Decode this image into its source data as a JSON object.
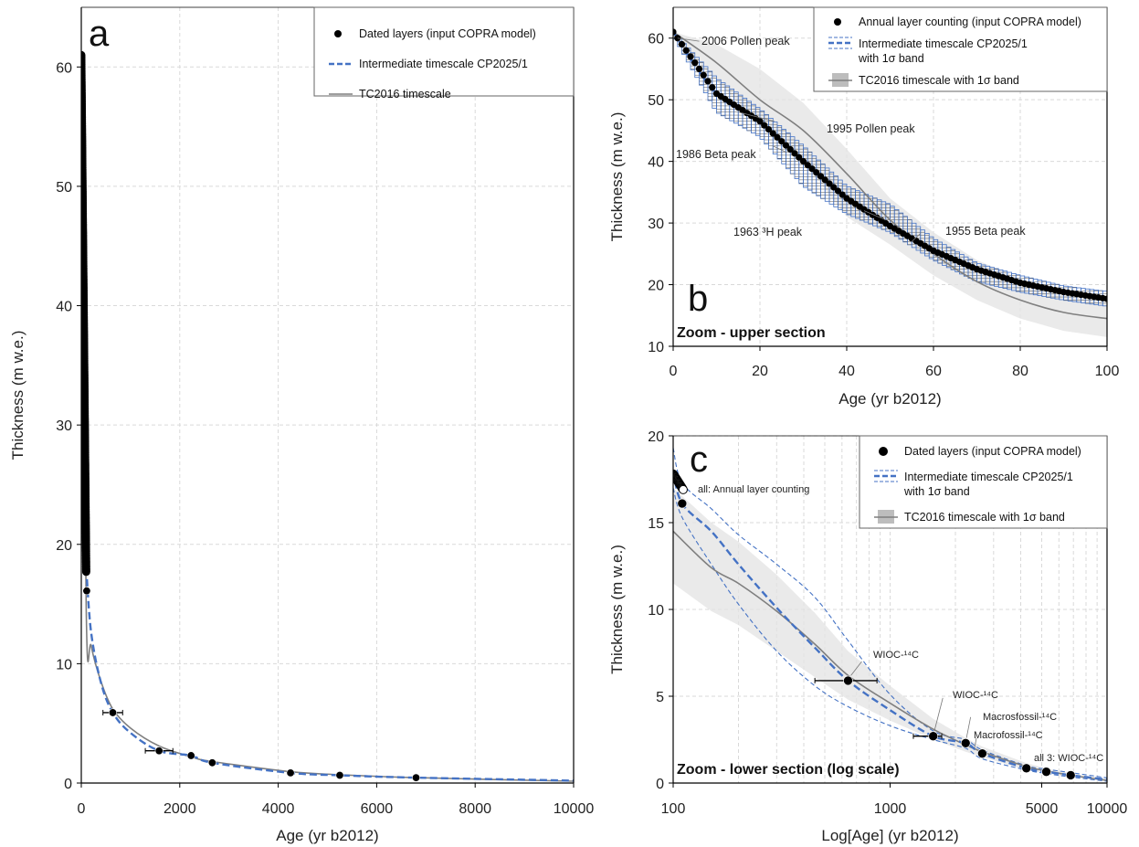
{
  "colors": {
    "dated": "#000000",
    "cp2025": "#4472c4",
    "tc2016": "#7f7f7f",
    "tc_band": "#e3e3e3"
  },
  "chart_data": [
    {
      "type": "scatter",
      "panel_letter": "a",
      "xlabel": "Age (yr b2012)",
      "ylabel": "Thickness (m w.e.)",
      "xlim": [
        0,
        10000
      ],
      "ylim": [
        0,
        65
      ],
      "xticks": [
        0,
        2000,
        4000,
        6000,
        8000,
        10000
      ],
      "yticks": [
        0,
        10,
        20,
        30,
        40,
        50,
        60
      ],
      "grid": true,
      "legend_position": "top-right",
      "legend": [
        {
          "label": "Dated layers (input COPRA model)",
          "kind": "marker"
        },
        {
          "label": "Intermediate timescale CP2025/1",
          "kind": "dash"
        },
        {
          "label": "TC2016 timescale",
          "kind": "solid"
        }
      ],
      "series": [
        {
          "name": "Dated layers (input COPRA model)",
          "role": "dated",
          "annual_layers": {
            "age_from": 0,
            "age_to": 100,
            "thickness_from": 61,
            "thickness_to": 17.7
          },
          "points": [
            {
              "x": 110,
              "y": 16.1
            },
            {
              "x": 640,
              "y": 5.9,
              "xerr": 200
            },
            {
              "x": 1580,
              "y": 2.7,
              "xerr": 280
            },
            {
              "x": 2230,
              "y": 2.3
            },
            {
              "x": 2660,
              "y": 1.7
            },
            {
              "x": 4250,
              "y": 0.85
            },
            {
              "x": 5250,
              "y": 0.65
            },
            {
              "x": 6800,
              "y": 0.45
            }
          ]
        },
        {
          "name": "Intermediate timescale CP2025/1",
          "role": "cp2025",
          "x": [
            100,
            200,
            400,
            640,
            1000,
            1580,
            2230,
            2660,
            4250,
            5250,
            6800,
            10000
          ],
          "y": [
            18.0,
            12.6,
            8.4,
            5.9,
            4.2,
            2.7,
            2.3,
            1.7,
            0.85,
            0.65,
            0.45,
            0.2
          ]
        },
        {
          "name": "TC2016 timescale",
          "role": "tc2016",
          "x": [
            0,
            100,
            200,
            400,
            640,
            1000,
            1580,
            2230,
            2660,
            4250,
            5250,
            6800,
            10000
          ],
          "y": [
            61,
            14.5,
            11.5,
            8.5,
            6.2,
            4.6,
            3.1,
            2.2,
            1.8,
            0.95,
            0.7,
            0.45,
            0.15
          ]
        }
      ]
    },
    {
      "type": "scatter",
      "panel_letter": "b",
      "zoom_label": "Zoom - upper section",
      "xlabel": "Age (yr b2012)",
      "ylabel": "Thickness (m w.e.)",
      "xlim": [
        0,
        100
      ],
      "ylim": [
        10,
        65
      ],
      "xticks": [
        0,
        20,
        40,
        60,
        80,
        100
      ],
      "yticks": [
        10,
        20,
        30,
        40,
        50,
        60
      ],
      "grid": true,
      "legend_position": "top-right",
      "legend": [
        {
          "label": "Annual layer counting (input COPRA model)",
          "kind": "marker"
        },
        {
          "label": "Intermediate timescale CP2025/1",
          "label2": "with 1σ band",
          "kind": "dash-band"
        },
        {
          "label": "TC2016 timescale with 1σ band",
          "kind": "solid-band"
        }
      ],
      "annotations": [
        {
          "text": "2006 Pollen peak",
          "x": 6,
          "y": 59.5
        },
        {
          "text": "1995 Pollen peak",
          "x": 17,
          "y": 46.5
        },
        {
          "text": "1986 Beta peak",
          "x": 26,
          "y": 41.5
        },
        {
          "text": "1963 ³H peak",
          "x": 49,
          "y": 30.5
        },
        {
          "text": "1955 Beta peak",
          "x": 57,
          "y": 28.3
        }
      ],
      "series": [
        {
          "name": "Annual layer counting (input COPRA model)",
          "role": "dated",
          "x": [
            0,
            10,
            20,
            30,
            40,
            50,
            60,
            70,
            80,
            90,
            100
          ],
          "y": [
            61,
            51,
            46.5,
            40,
            34,
            29.5,
            25.5,
            22.5,
            20.3,
            18.8,
            17.7
          ]
        },
        {
          "name": "Intermediate timescale CP2025/1",
          "role": "cp2025",
          "x": [
            0,
            10,
            20,
            30,
            40,
            50,
            60,
            70,
            80,
            90,
            100
          ],
          "y": [
            61,
            51,
            46.5,
            40,
            34,
            29.5,
            25.5,
            22.5,
            20.3,
            18.8,
            17.7
          ],
          "band_lower": [
            60.5,
            48,
            44,
            36,
            31.5,
            28.5,
            24,
            20.5,
            18.8,
            17.5,
            16.5
          ],
          "band_upper": [
            61,
            53.5,
            48.5,
            42.5,
            36,
            33,
            27.5,
            23.5,
            21.5,
            19.8,
            18.9
          ]
        },
        {
          "name": "TC2016 timescale with 1σ band",
          "role": "tc2016",
          "x": [
            0,
            10,
            20,
            30,
            40,
            50,
            60,
            70,
            80,
            90,
            100
          ],
          "y": [
            61,
            56,
            50,
            45,
            38,
            30.5,
            25,
            20.5,
            17.5,
            15.5,
            14.5
          ],
          "band_lower": [
            60,
            53,
            46,
            40,
            31,
            26.5,
            21.5,
            17.5,
            14.5,
            12.5,
            11.5
          ],
          "band_upper": [
            61,
            59,
            55,
            49.5,
            42,
            34,
            28.5,
            24,
            21,
            18.5,
            17
          ]
        }
      ]
    },
    {
      "type": "scatter",
      "panel_letter": "c",
      "zoom_label": "Zoom - lower section (log scale)",
      "xlabel": "Log[Age] (yr b2012)",
      "ylabel": "Thickness (m w.e.)",
      "xscale": "log",
      "xlim": [
        100,
        10000
      ],
      "ylim": [
        0,
        20
      ],
      "xticks": [
        100,
        1000,
        5000,
        10000
      ],
      "yticks": [
        0,
        5,
        10,
        15,
        20
      ],
      "grid": true,
      "legend_position": "top-right",
      "legend": [
        {
          "label": "Dated layers (input COPRA model)",
          "kind": "marker"
        },
        {
          "label": "Intermediate timescale CP2025/1",
          "label2": "with 1σ band",
          "kind": "dash-band"
        },
        {
          "label": "TC2016 timescale with 1σ band",
          "kind": "solid-band"
        }
      ],
      "annotations": [
        {
          "text": "all: Annual layer counting",
          "x": 125,
          "y": 16.5
        },
        {
          "text": "WIOC-¹⁴C",
          "x": 740,
          "y": 7
        },
        {
          "text": "WIOC-¹⁴C",
          "x": 1750,
          "y": 4.9
        },
        {
          "text": "Macrosfossil-¹⁴C",
          "x": 2350,
          "y": 3.8
        },
        {
          "text": "Macrofossil-¹⁴C",
          "x": 2500,
          "y": 2.6
        },
        {
          "text": "all 3: WIOC-¹⁴C",
          "x": 4750,
          "y": 1.4
        }
      ],
      "series": [
        {
          "name": "Dated layers (input COPRA model)",
          "role": "dated",
          "annual_layers": {
            "age_from": 100,
            "age_to": 108,
            "thickness_from": 17.8,
            "thickness_to": 16.9
          },
          "points": [
            {
              "x": 110,
              "y": 16.1
            },
            {
              "x": 640,
              "y": 5.9,
              "xerr_low": 190,
              "xerr_high": 230
            },
            {
              "x": 1580,
              "y": 2.7,
              "xerr_low": 300,
              "xerr_high": 150
            },
            {
              "x": 2230,
              "y": 2.3
            },
            {
              "x": 2660,
              "y": 1.7
            },
            {
              "x": 4250,
              "y": 0.85
            },
            {
              "x": 5250,
              "y": 0.65
            },
            {
              "x": 6800,
              "y": 0.45
            }
          ]
        },
        {
          "name": "Intermediate timescale CP2025/1",
          "role": "cp2025",
          "x": [
            100,
            110,
            150,
            200,
            300,
            450,
            640,
            1000,
            1580,
            2230,
            2660,
            4250,
            5250,
            6800,
            10000
          ],
          "y": [
            18.0,
            16.1,
            14.5,
            12.6,
            10.1,
            7.8,
            5.9,
            4.2,
            2.7,
            2.3,
            1.7,
            0.85,
            0.65,
            0.45,
            0.2
          ],
          "band_lower": [
            17.0,
            15.3,
            12.6,
            10.3,
            7.6,
            5.6,
            4.4,
            3.3,
            2.5,
            2.0,
            1.4,
            0.75,
            0.55,
            0.35,
            0.1
          ],
          "band_upper": [
            19.3,
            17.3,
            15.8,
            14.3,
            12.6,
            10.7,
            8.2,
            5.1,
            3.0,
            2.5,
            1.9,
            1.0,
            0.8,
            0.6,
            0.3
          ]
        },
        {
          "name": "TC2016 timescale with 1σ band",
          "role": "tc2016",
          "x": [
            100,
            150,
            200,
            300,
            450,
            640,
            1000,
            1580,
            2230,
            2660,
            4250,
            5250,
            6800,
            10000
          ],
          "y": [
            14.5,
            12.4,
            11.5,
            9.9,
            8.0,
            6.2,
            4.6,
            3.1,
            2.2,
            1.8,
            0.95,
            0.7,
            0.45,
            0.15
          ],
          "band_lower": [
            11.5,
            9.9,
            9.1,
            7.6,
            6.1,
            4.8,
            3.6,
            2.5,
            1.8,
            1.5,
            0.75,
            0.55,
            0.35,
            0.1
          ],
          "band_upper": [
            17.0,
            15.0,
            13.9,
            12.0,
            9.8,
            7.6,
            5.6,
            3.7,
            2.6,
            2.1,
            1.15,
            0.85,
            0.55,
            0.25
          ]
        }
      ]
    }
  ]
}
